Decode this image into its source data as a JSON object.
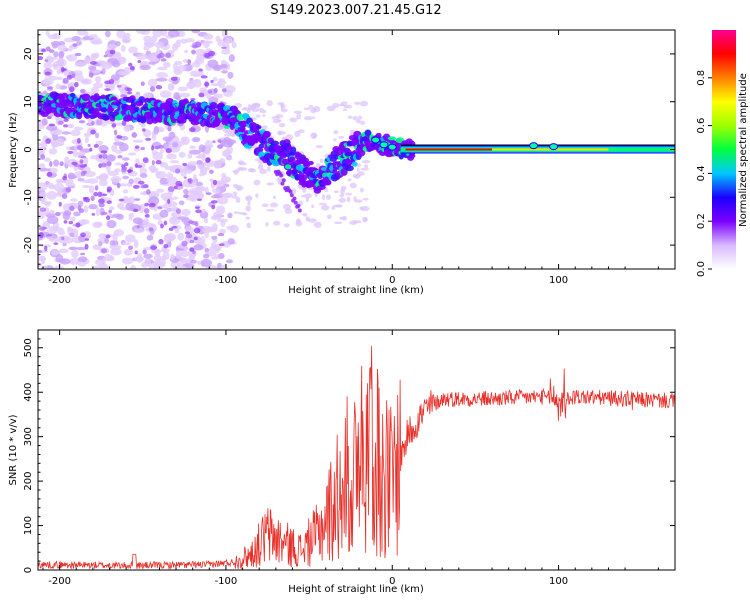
{
  "figure": {
    "title": "S149.2023.007.21.45.G12"
  },
  "chart_data": [
    {
      "type": "heatmap",
      "name": "spectrogram",
      "xlabel": "Height of straight line (km)",
      "ylabel": "Frequency (Hz)",
      "xlim": [
        -213,
        170
      ],
      "ylim": [
        -25,
        25
      ],
      "xticks": [
        -200,
        -100,
        0,
        100
      ],
      "yticks": [
        -20,
        -10,
        0,
        10,
        20
      ],
      "tick_labels_x": [
        "-200",
        "-100",
        "0",
        "100"
      ],
      "tick_labels_y": [
        "-20",
        "-10",
        "0",
        "10",
        "20"
      ],
      "description_points": {
        "trace": [
          [
            -213,
            9.5
          ],
          [
            -180,
            9
          ],
          [
            -140,
            8
          ],
          [
            -110,
            7.5
          ],
          [
            -95,
            6.5
          ],
          [
            -85,
            3
          ],
          [
            -75,
            0.5
          ],
          [
            -65,
            -1
          ],
          [
            -55,
            -4
          ],
          [
            -45,
            -6
          ],
          [
            -35,
            -3
          ],
          [
            -25,
            -1
          ],
          [
            -15,
            2
          ],
          [
            -5,
            1
          ],
          [
            0,
            0.5
          ],
          [
            10,
            0
          ],
          [
            170,
            0
          ]
        ]
      },
      "colorbar": {
        "label": "Normalized spectral amplitude",
        "range": [
          0,
          1
        ],
        "ticks": [
          0.0,
          0.2,
          0.4,
          0.6,
          0.8
        ],
        "tick_labels": [
          "0.0",
          "0.2",
          "0.4",
          "0.6",
          "0.8"
        ],
        "colors": [
          "#ffffff",
          "#d8b8ff",
          "#7b00ff",
          "#1a00ff",
          "#00c8ff",
          "#00ff40",
          "#a0ff00",
          "#ffff00",
          "#ff8000",
          "#ff0000",
          "#ff0090"
        ]
      }
    },
    {
      "type": "line",
      "name": "snr",
      "xlabel": "Height of straight line (km)",
      "ylabel": "SNR (10 * v/v)",
      "xlim": [
        -213,
        170
      ],
      "ylim": [
        0,
        540
      ],
      "xticks": [
        -200,
        -100,
        0,
        100
      ],
      "yticks": [
        0,
        100,
        200,
        300,
        400,
        500
      ],
      "tick_labels_x": [
        "-200",
        "-100",
        "0",
        "100"
      ],
      "tick_labels_y": [
        "0",
        "100",
        "200",
        "300",
        "400",
        "500"
      ],
      "color": "#e8302a",
      "series_envelope": {
        "x": [
          -213,
          -160,
          -110,
          -95,
          -85,
          -75,
          -65,
          -55,
          -45,
          -35,
          -28,
          -20,
          -10,
          0,
          10,
          20,
          30,
          60,
          90,
          100,
          110,
          140,
          170
        ],
        "mean": [
          12,
          10,
          12,
          18,
          35,
          80,
          60,
          45,
          80,
          150,
          200,
          220,
          230,
          200,
          310,
          360,
          385,
          385,
          390,
          380,
          390,
          385,
          380
        ]
      }
    }
  ]
}
